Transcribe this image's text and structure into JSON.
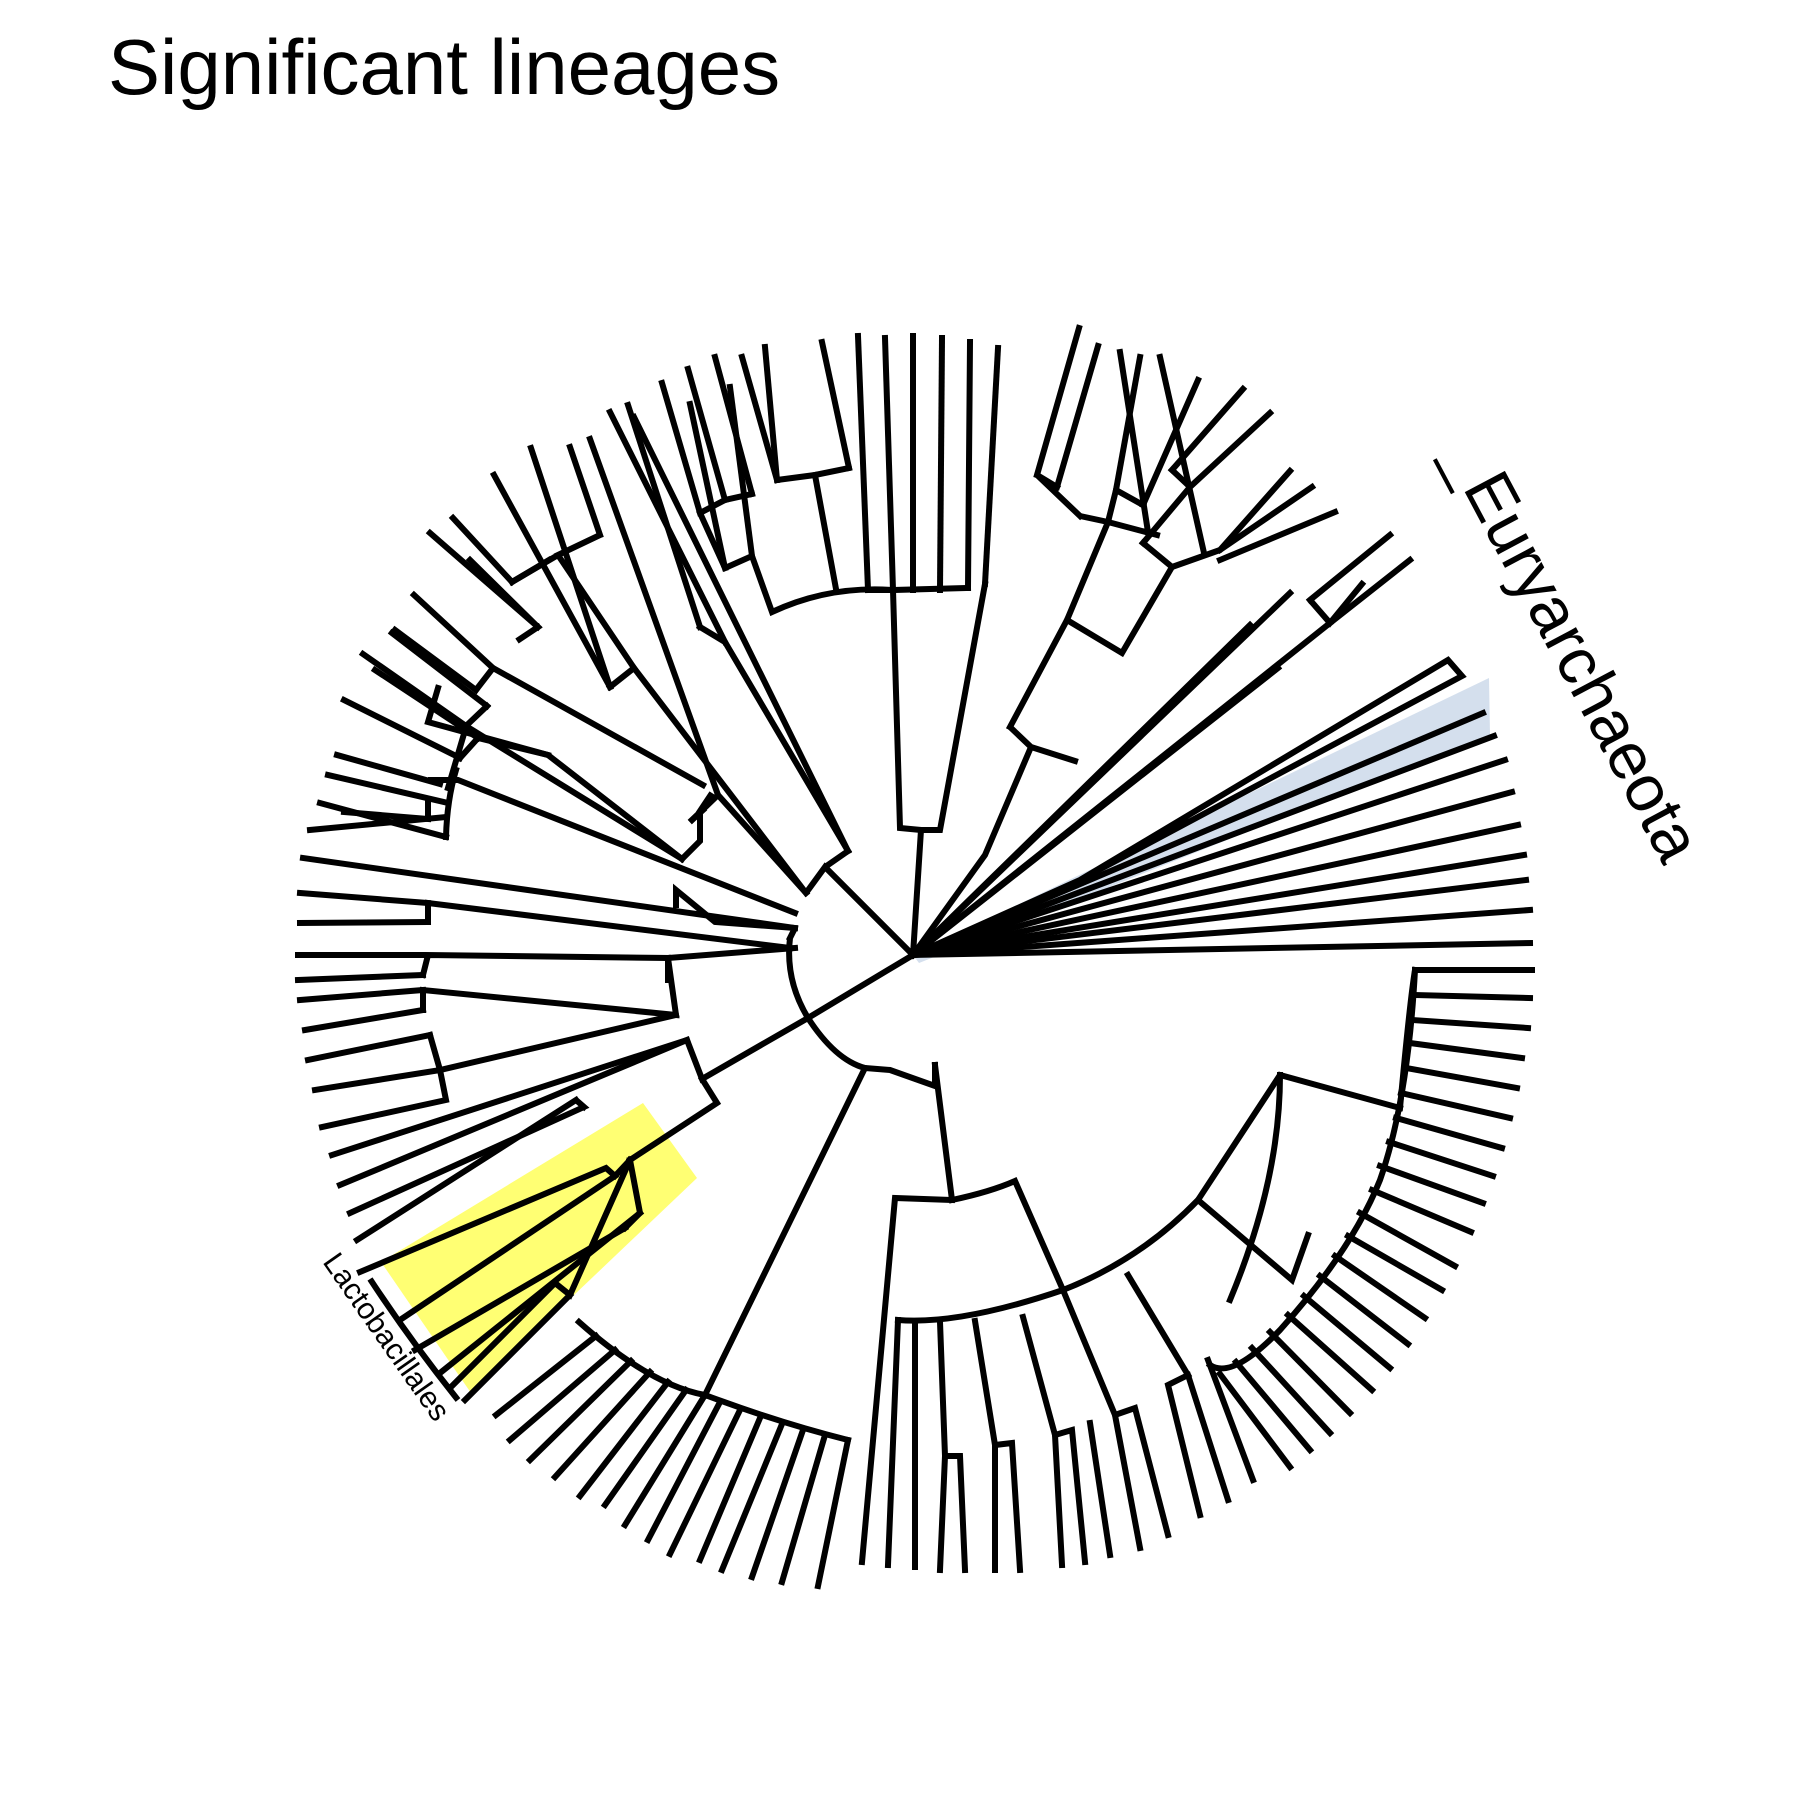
{
  "title": "Significant lineages",
  "tree": {
    "layout": "circular",
    "leaf_count": 101,
    "colors": {
      "branch": "#000000",
      "highlight_lactobacillales": "#ffff00",
      "highlight_euryarchaeota": "#b0c4de"
    }
  },
  "clade_labels": [
    {
      "id": "euryarchaeota",
      "text": "_Euryarchaeota",
      "highlight_color": "#b0c4de"
    },
    {
      "id": "lactobacillales",
      "text": "Lactobacillales",
      "highlight_color": "#ffff00"
    }
  ]
}
